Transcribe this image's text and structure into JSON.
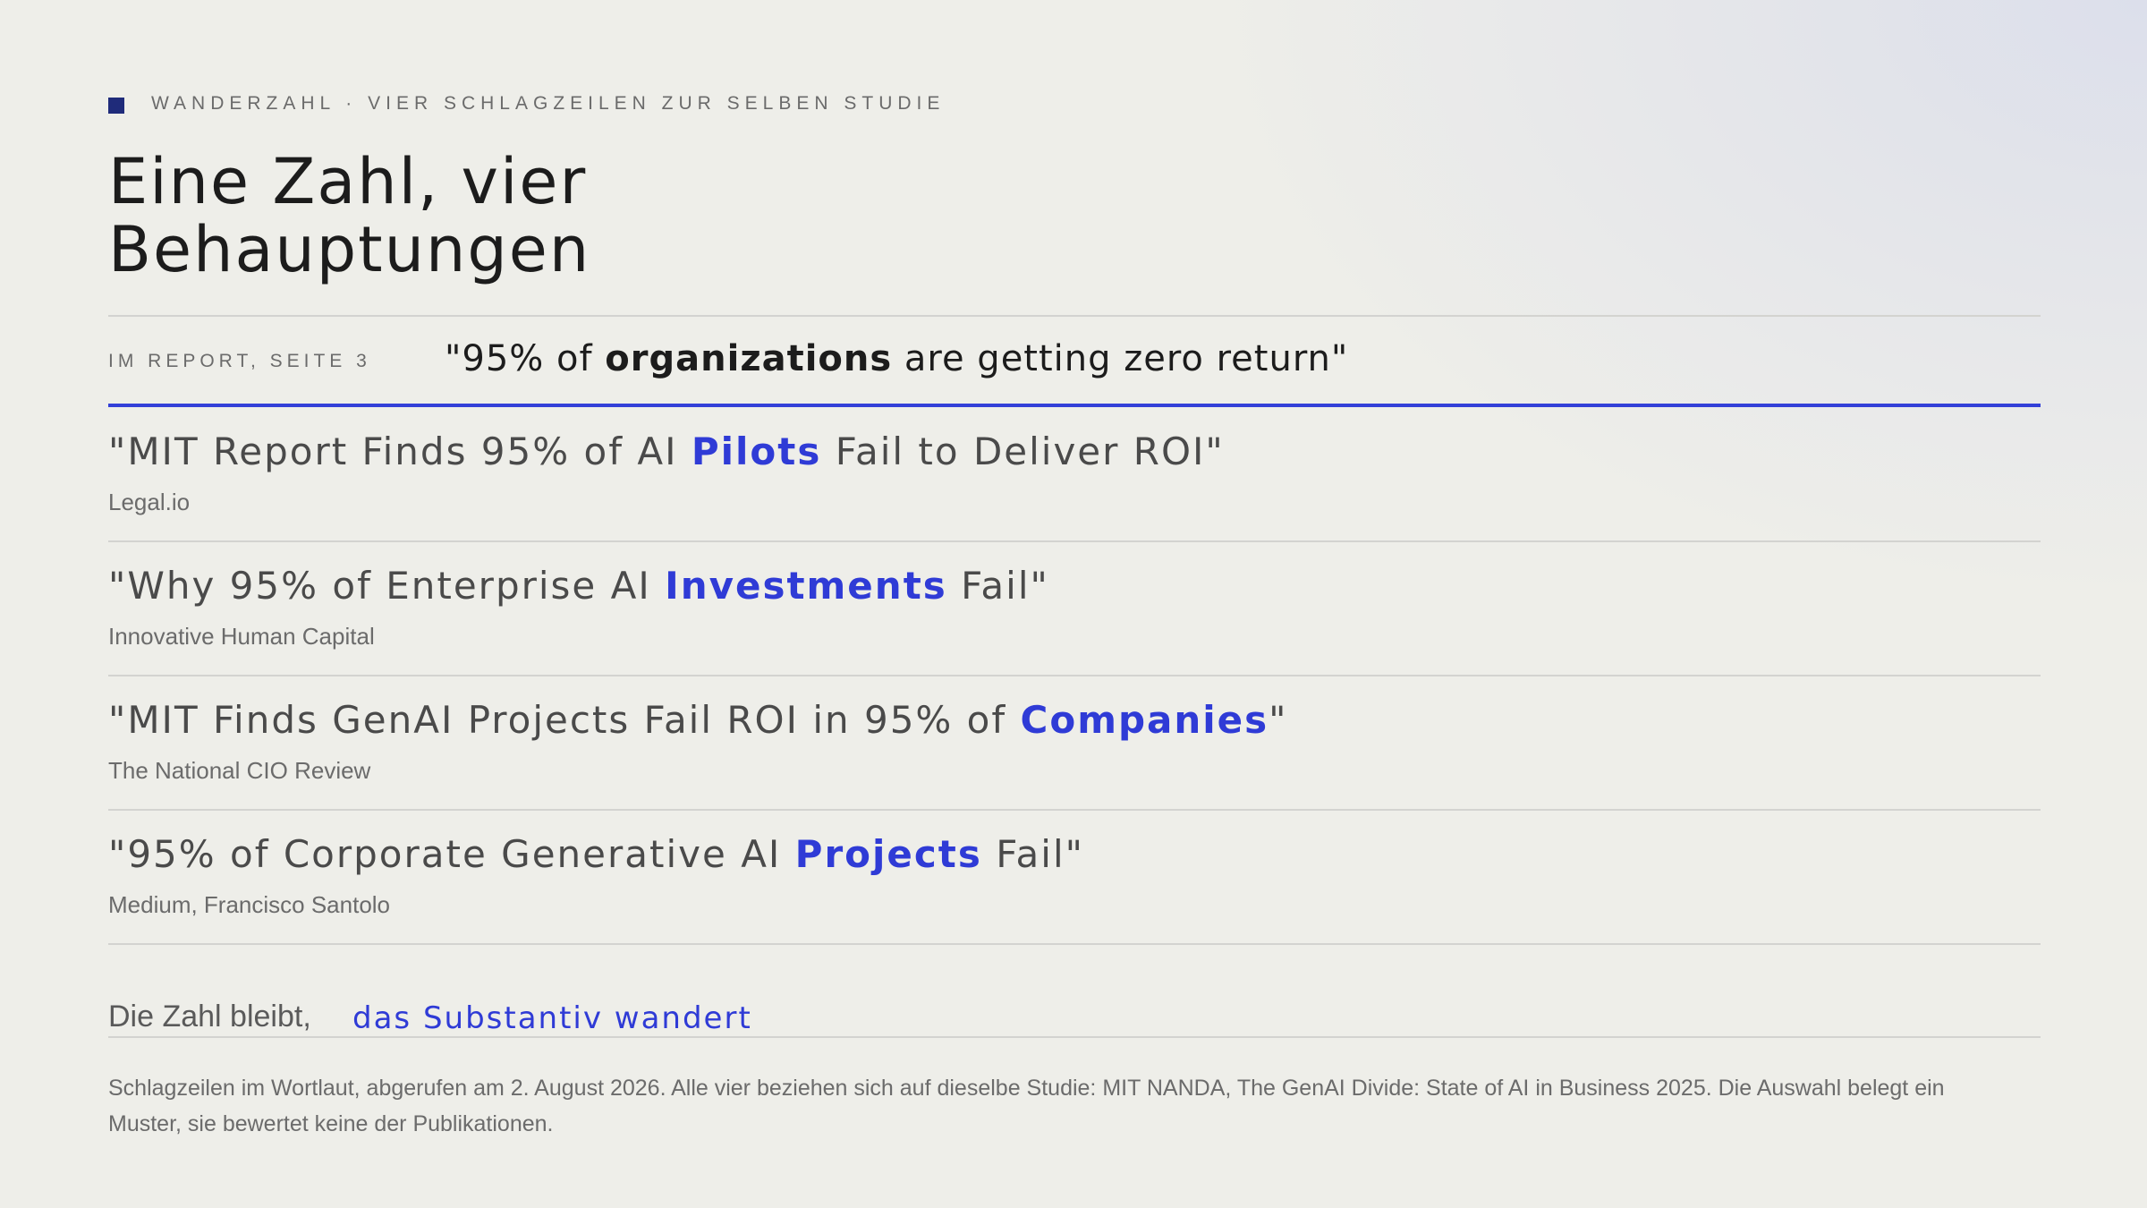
{
  "header": {
    "kicker": "WANDERZAHL · VIER SCHLAGZEILEN ZUR SELBEN STUDIE",
    "title_lines": [
      "Eine Zahl, vier",
      "Behauptungen"
    ]
  },
  "reference": {
    "label": "IM REPORT, SEITE 3",
    "before": "\"95% of ",
    "highlight": "organizations",
    "after": " are getting zero return\""
  },
  "headlines": [
    {
      "before": "\"MIT Report Finds 95% of AI ",
      "highlight": "Pilots",
      "after": " Fail to Deliver ROI\"",
      "source": "Legal.io"
    },
    {
      "before": "\"Why 95% of Enterprise AI ",
      "highlight": "Investments",
      "after": " Fail\"",
      "source": "Innovative Human Capital"
    },
    {
      "before": "\"MIT Finds GenAI Projects Fail ROI in 95% of ",
      "highlight": "Companies",
      "after": "\"",
      "source": "The National CIO Review"
    },
    {
      "before": "\"95% of Corporate Generative AI ",
      "highlight": "Projects",
      "after": " Fail\"",
      "source": "Medium, Francisco Santolo"
    }
  ],
  "conclusion": {
    "lead": "Die Zahl bleibt,",
    "highlight": "das Substantiv wandert"
  },
  "footnote": "Schlagzeilen im Wortlaut, abgerufen am 2. August 2026. Alle vier beziehen sich auf dieselbe Studie: MIT NANDA, The GenAI Divide: State of AI in Business 2025. Die Auswahl belegt ein Muster, sie bewertet keine der Publikationen."
}
